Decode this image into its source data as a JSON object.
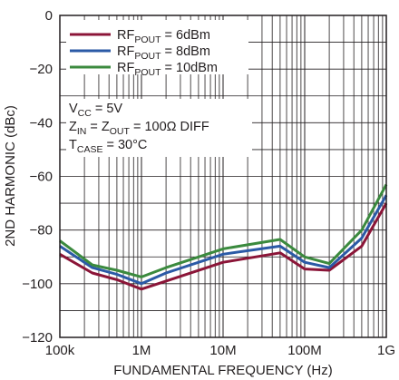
{
  "chart_data": {
    "type": "line",
    "xlabel": "FUNDAMENTAL FREQUENCY (Hz)",
    "ylabel": "2ND HARMONIC (dBc)",
    "xscale": "log",
    "xlim": [
      100000,
      1000000000
    ],
    "ylim": [
      -120,
      0
    ],
    "grid": true,
    "legend_position": "top-left",
    "x_tick_values": [
      100000,
      1000000,
      10000000,
      100000000,
      1000000000
    ],
    "x_tick_labels": [
      "100k",
      "1M",
      "10M",
      "100M",
      "1G"
    ],
    "y_tick_values": [
      0,
      -20,
      -40,
      -60,
      -80,
      -100,
      -120
    ],
    "y_tick_labels": [
      "0",
      "−20",
      "−40",
      "−60",
      "−80",
      "−100",
      "−120"
    ],
    "series": [
      {
        "legend_main": "RF",
        "legend_sub": "POUT",
        "legend_rest": " = 6dBm",
        "color": "#8b1538",
        "x": [
          100000,
          250000,
          500000,
          1000000,
          2000000,
          10000000,
          50000000,
          100000000,
          200000000,
          500000000,
          1000000000
        ],
        "y": [
          -89,
          -96,
          -98.5,
          -102,
          -99,
          -92,
          -88.5,
          -94.5,
          -95,
          -86,
          -70
        ]
      },
      {
        "legend_main": "RF",
        "legend_sub": "POUT",
        "legend_rest": " = 8dBm",
        "color": "#2b5aa6",
        "x": [
          100000,
          250000,
          500000,
          1000000,
          2000000,
          10000000,
          50000000,
          100000000,
          200000000,
          500000000,
          1000000000
        ],
        "y": [
          -86,
          -94,
          -96.5,
          -100,
          -96,
          -89,
          -86,
          -92,
          -94,
          -83,
          -67
        ]
      },
      {
        "legend_main": "RF",
        "legend_sub": "POUT",
        "legend_rest": " = 10dBm",
        "color": "#3b8a3e",
        "x": [
          100000,
          250000,
          500000,
          1000000,
          2000000,
          10000000,
          50000000,
          100000000,
          200000000,
          500000000,
          1000000000
        ],
        "y": [
          -84,
          -93,
          -95,
          -97.5,
          -94,
          -87,
          -83.5,
          -90,
          -92.5,
          -80,
          -63
        ]
      }
    ],
    "annotations": {
      "vcc_main": "V",
      "vcc_sub": "CC",
      "vcc_rest": " = 5V",
      "z_main1": "Z",
      "z_sub1": "IN",
      "z_mid": " = Z",
      "z_sub2": "OUT",
      "z_rest": " = 100Ω DIFF",
      "t_main": "T",
      "t_sub": "CASE",
      "t_rest": " = 30°C"
    }
  }
}
